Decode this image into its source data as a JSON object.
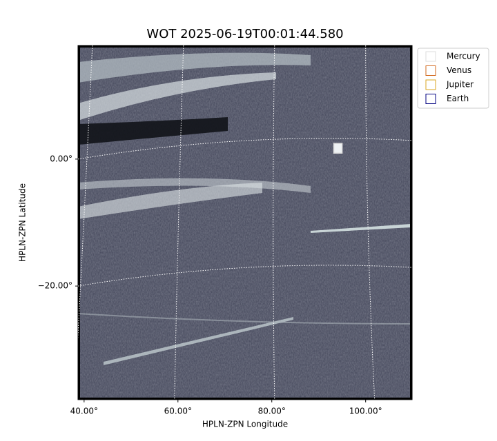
{
  "chart_data": {
    "type": "image",
    "title": "WOT 2025-06-19T00:01:44.580",
    "xlabel": "HPLN-ZPN Longitude",
    "ylabel": "HPLN-ZPN Latitude",
    "xlim": [
      38.7,
      109.9
    ],
    "ylim": [
      -37.9,
      17.9
    ],
    "xticks": [
      {
        "value": 40,
        "label": "40.00°"
      },
      {
        "value": 60,
        "label": "60.00°"
      },
      {
        "value": 80,
        "label": "80.00°"
      },
      {
        "value": 100,
        "label": "100.00°"
      }
    ],
    "yticks": [
      {
        "value": 0,
        "label": "0.00°"
      },
      {
        "value": -20,
        "label": "−20.00°"
      }
    ],
    "grid": true,
    "legend": "upper right",
    "series": [
      {
        "name": "Mercury",
        "color": "#dddddd",
        "x": [
          94.1
        ],
        "y": [
          1.7
        ]
      },
      {
        "name": "Venus",
        "color": "#d2691e"
      },
      {
        "name": "Jupiter",
        "color": "#daa520"
      },
      {
        "name": "Earth",
        "color": "#000080"
      }
    ]
  }
}
